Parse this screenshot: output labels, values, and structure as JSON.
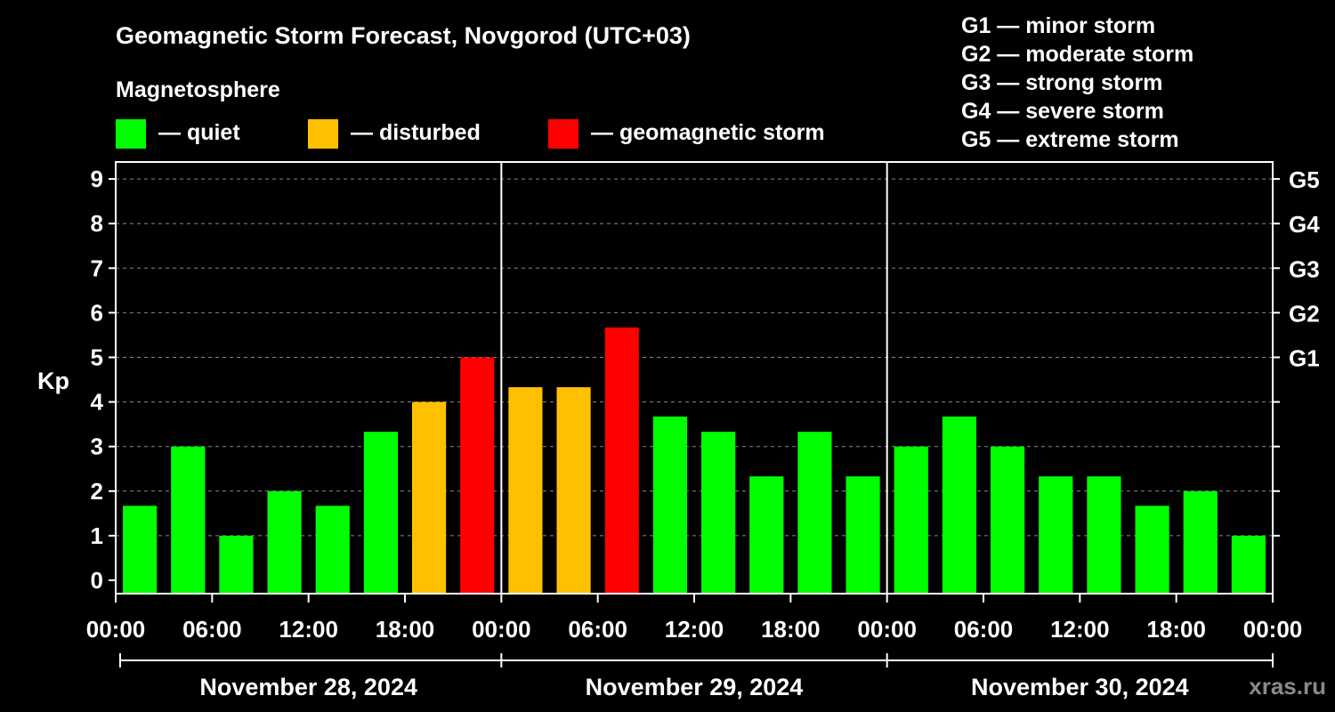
{
  "title": "Geomagnetic Storm Forecast, Novgorod (UTC+03)",
  "magnetosphere_label": "Magnetosphere",
  "legend": [
    {
      "key": "quiet",
      "label": "— quiet",
      "color": "#00ff00"
    },
    {
      "key": "disturbed",
      "label": "— disturbed",
      "color": "#ffc000"
    },
    {
      "key": "storm",
      "label": "— geomagnetic storm",
      "color": "#ff0000"
    }
  ],
  "storm_scale": [
    "G1 — minor storm",
    "G2 — moderate storm",
    "G3 — strong storm",
    "G4 — severe storm",
    "G5 — extreme storm"
  ],
  "watermark": "xras.ru",
  "colors": {
    "background": "#000000",
    "foreground": "#ffffff",
    "grid": "#888888"
  },
  "chart_data": {
    "type": "bar",
    "ylabel": "Kp",
    "ylim": [
      0,
      9
    ],
    "y_ticks": [
      "0",
      "1",
      "2",
      "3",
      "4",
      "5",
      "6",
      "7",
      "8",
      "9"
    ],
    "right_axis": [
      {
        "value": 5,
        "label": "G1"
      },
      {
        "value": 6,
        "label": "G2"
      },
      {
        "value": 7,
        "label": "G3"
      },
      {
        "value": 8,
        "label": "G4"
      },
      {
        "value": 9,
        "label": "G5"
      }
    ],
    "x_tick_labels": [
      "00:00",
      "06:00",
      "12:00",
      "18:00",
      "00:00",
      "06:00",
      "12:00",
      "18:00",
      "00:00",
      "06:00",
      "12:00",
      "18:00",
      "00:00"
    ],
    "days": [
      "November 28, 2024",
      "November 29, 2024",
      "November 30, 2024"
    ],
    "interval_hours": 3,
    "grid": "dashed horizontal",
    "values": [
      1.67,
      3,
      1,
      2,
      1.67,
      3.33,
      4,
      5,
      4.33,
      4.33,
      5.67,
      3.67,
      3.33,
      2.33,
      3.33,
      2.33,
      3,
      3.67,
      3,
      2.33,
      2.33,
      1.67,
      2,
      1
    ],
    "levels": [
      "quiet",
      "quiet",
      "quiet",
      "quiet",
      "quiet",
      "quiet",
      "disturbed",
      "storm",
      "disturbed",
      "disturbed",
      "storm",
      "quiet",
      "quiet",
      "quiet",
      "quiet",
      "quiet",
      "quiet",
      "quiet",
      "quiet",
      "quiet",
      "quiet",
      "quiet",
      "quiet",
      "quiet"
    ]
  }
}
